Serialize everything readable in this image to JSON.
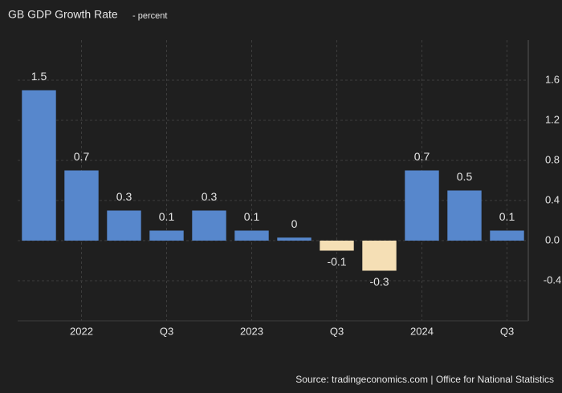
{
  "chart_data": {
    "type": "bar",
    "title": "GB GDP Growth Rate",
    "subtitle": "- percent",
    "categories": [
      null,
      "2022",
      null,
      "Q3",
      null,
      "2023",
      null,
      "Q3",
      null,
      "2024",
      null,
      "Q3"
    ],
    "values": [
      1.5,
      0.7,
      0.3,
      0.1,
      0.3,
      0.1,
      0.03,
      -0.1,
      -0.3,
      0.7,
      0.5,
      0.1
    ],
    "value_labels": [
      "1.5",
      "0.7",
      "0.3",
      "0.1",
      "0.3",
      "0.1",
      "0",
      "-0.1",
      "-0.3",
      "0.7",
      "0.5",
      "0.1"
    ],
    "color": "#5787cc",
    "negative_color": "#f5dfb5",
    "ylim": [
      -0.8,
      2.0
    ],
    "yticks": [
      -0.4,
      {
        "value": 0,
        "label": "0.0"
      },
      0.4,
      0.8,
      1.2,
      1.6
    ],
    "grid": true,
    "source": "Source: tradingeconomics.com | Office for National Statistics"
  }
}
